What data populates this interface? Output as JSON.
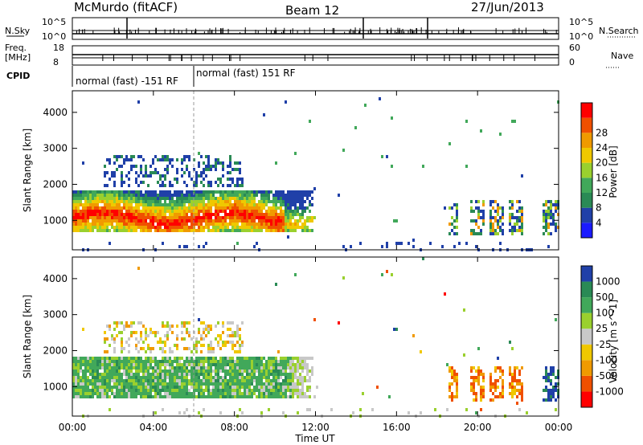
{
  "header": {
    "station": "McMurdo (fitACF)",
    "beam": "Beam 12",
    "date": "27/Jun/2013"
  },
  "top_panels": {
    "nsky_label": "N.Sky",
    "nsearch_label": "N.Search",
    "nsky_ticks": [
      "10^5",
      "10^0"
    ],
    "nsearch_ticks": [
      "10^5",
      "10^0"
    ],
    "freq_label_1": "Freq.",
    "freq_label_2": "[MHz]",
    "freq_ticks": [
      "18",
      "8"
    ],
    "nave_label": "Nave",
    "nave_ticks": [
      "60",
      "0"
    ],
    "cpid_label": "CPID",
    "cpid_segments": [
      "normal (fast) -151 RF",
      "normal (fast) 151 RF"
    ]
  },
  "colors": {
    "power": [
      "#1a1aff",
      "#2040a8",
      "#2a8a55",
      "#41a85a",
      "#9ad02e",
      "#f0c800",
      "#f09a00",
      "#f05000",
      "#ff0000"
    ],
    "velocity": [
      "#ff0000",
      "#f05000",
      "#f09a00",
      "#f0c800",
      "#c8c8c8",
      "#9ad02e",
      "#41a85a",
      "#2a8a55",
      "#2040a8"
    ]
  },
  "chart_data": [
    {
      "type": "heatmap",
      "name": "power",
      "ylabel": "Slant Range [km]",
      "colorbar_label": "Power [dB]",
      "colorbar_ticks": [
        "4",
        "8",
        "12",
        "16",
        "20",
        "24",
        "28"
      ],
      "x_range": [
        "00:00",
        "24:00"
      ],
      "ylim": [
        180,
        4600
      ],
      "y_ticks": [
        "1000",
        "2000",
        "3000",
        "4000"
      ],
      "blobs": [
        {
          "t0": 0.0,
          "t1": 12.0,
          "r0": 600,
          "r1": 1800,
          "level": 28,
          "desc_range": "600-1800 km"
        },
        {
          "t0": 1.5,
          "t1": 8.0,
          "r0": 2000,
          "r1": 2800,
          "level": 6
        },
        {
          "t0": 18.5,
          "t1": 24.0,
          "r0": 600,
          "r1": 1600,
          "level": 12
        }
      ]
    },
    {
      "type": "heatmap",
      "name": "velocity",
      "ylabel": "Slant Range [km]",
      "colorbar_label": "Velocity [m s^-1]",
      "colorbar_ticks": [
        "1000",
        "500",
        "100",
        "25",
        "-25",
        "-100",
        "-500",
        "-1000"
      ],
      "x_range": [
        "00:00",
        "24:00"
      ],
      "xlabel": "Time UT",
      "x_ticks": [
        "00:00",
        "04:00",
        "08:00",
        "12:00",
        "16:00",
        "20:00",
        "00:00"
      ],
      "ylim": [
        180,
        4600
      ],
      "y_ticks": [
        "1000",
        "2000",
        "3000",
        "4000"
      ]
    }
  ]
}
